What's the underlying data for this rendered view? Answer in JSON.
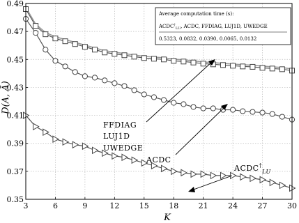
{
  "chart_data": {
    "type": "line",
    "title": "",
    "xlabel": "K",
    "ylabel": "D(A, Ã)",
    "xlim": [
      3,
      30
    ],
    "ylim": [
      0.35,
      0.49
    ],
    "x_ticks": [
      3,
      6,
      9,
      12,
      15,
      18,
      21,
      24,
      27,
      30
    ],
    "y_ticks": [
      0.35,
      0.37,
      0.39,
      0.41,
      0.43,
      0.45,
      0.47,
      0.49
    ],
    "x_tick_labels": [
      "3",
      "6",
      "9",
      "12",
      "15",
      "18",
      "21",
      "24",
      "27",
      "30"
    ],
    "y_tick_labels": [
      "0.35",
      "0.37",
      "0.39",
      "0.41",
      "0.43",
      "0.45",
      "0.47",
      "0.49"
    ],
    "grid": true,
    "x": [
      3,
      4,
      5,
      6,
      7,
      8,
      9,
      10,
      11,
      12,
      13,
      14,
      15,
      16,
      17,
      18,
      19,
      20,
      21,
      22,
      23,
      24,
      25,
      26,
      27,
      28,
      29,
      30
    ],
    "series": [
      {
        "marker": "square",
        "values": [
          0.486,
          0.474,
          0.468,
          0.465,
          0.463,
          0.461,
          0.459,
          0.457,
          0.455,
          0.454,
          0.453,
          0.452,
          0.451,
          0.4505,
          0.45,
          0.449,
          0.4485,
          0.4478,
          0.447,
          0.4465,
          0.446,
          0.4455,
          0.445,
          0.4447,
          0.444,
          0.4435,
          0.443,
          0.442
        ]
      },
      {
        "marker": "circle",
        "values": [
          0.479,
          0.469,
          0.457,
          0.449,
          0.445,
          0.441,
          0.438,
          0.437,
          0.435,
          0.433,
          0.431,
          0.428,
          0.425,
          0.423,
          0.421,
          0.419,
          0.418,
          0.416,
          0.415,
          0.415,
          0.414,
          0.414,
          0.413,
          0.4125,
          0.412,
          0.411,
          0.409,
          0.407
        ]
      },
      {
        "marker": "triangle-right",
        "values": [
          0.41,
          0.402,
          0.398,
          0.393,
          0.391,
          0.389,
          0.388,
          0.385,
          0.383,
          0.381,
          0.38,
          0.378,
          0.376,
          0.374,
          0.372,
          0.37,
          0.369,
          0.368,
          0.368,
          0.367,
          0.367,
          0.367,
          0.366,
          0.365,
          0.364,
          0.362,
          0.36,
          0.358
        ]
      }
    ],
    "annotations": {
      "ffdiag_lines": [
        "FFDIAG",
        "LUJ1D",
        "UWEDGE"
      ],
      "acdc": "ACDC",
      "acdc_lu_main": "ACDC",
      "acdc_lu_sup": "†",
      "acdc_lu_sub": "LU"
    },
    "legend": {
      "header": "Average computation time (s):",
      "method_first": "ACDC",
      "method_first_sup": "†",
      "method_first_sub": "LU",
      "methods_rest": ", ACDC, FFDIAG, LUJ1D, UWEDGE",
      "times": "0.5323,   0.0832, 0.0390,  0.0065,  0.0132"
    }
  }
}
